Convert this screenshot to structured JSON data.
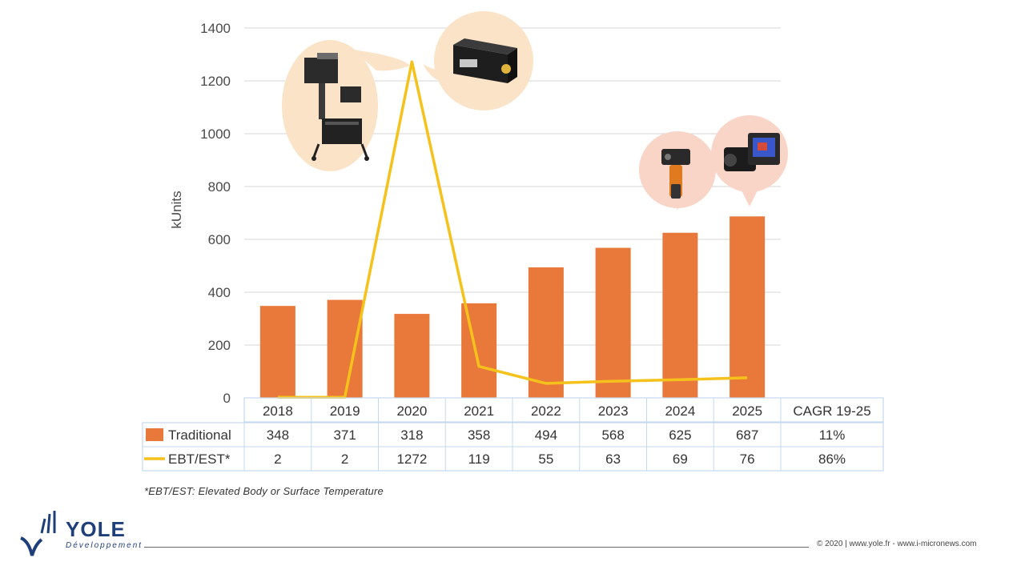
{
  "chart_data": {
    "type": "bar",
    "categories": [
      "2018",
      "2019",
      "2020",
      "2021",
      "2022",
      "2023",
      "2024",
      "2025"
    ],
    "series": [
      {
        "name": "Traditional",
        "kind": "bar",
        "color": "#E8793A",
        "values": [
          348,
          371,
          318,
          358,
          494,
          568,
          625,
          687
        ],
        "cagr": "11%"
      },
      {
        "name": "EBT/EST*",
        "kind": "line",
        "color": "#F5C21B",
        "values": [
          2,
          2,
          1272,
          119,
          55,
          63,
          69,
          76
        ],
        "cagr": "86%"
      }
    ],
    "ylabel": "kUnits",
    "ylim": [
      0,
      1400
    ],
    "yticks": [
      0,
      200,
      400,
      600,
      800,
      1000,
      1200,
      1400
    ],
    "grid": true,
    "table_extra_header": "CAGR 19-25",
    "footnote": "*EBT/EST: Elevated Body or Surface Temperature"
  },
  "branding": {
    "logo_name": "YOLE",
    "logo_sub": "Développement",
    "footer_text": "© 2020 | www.yole.fr - www.i-micronews.com"
  },
  "colors": {
    "bar": "#E8793A",
    "line": "#F5C21B",
    "bubble": "#FBE3C7",
    "bubble_pink": "#F9D5C7"
  }
}
